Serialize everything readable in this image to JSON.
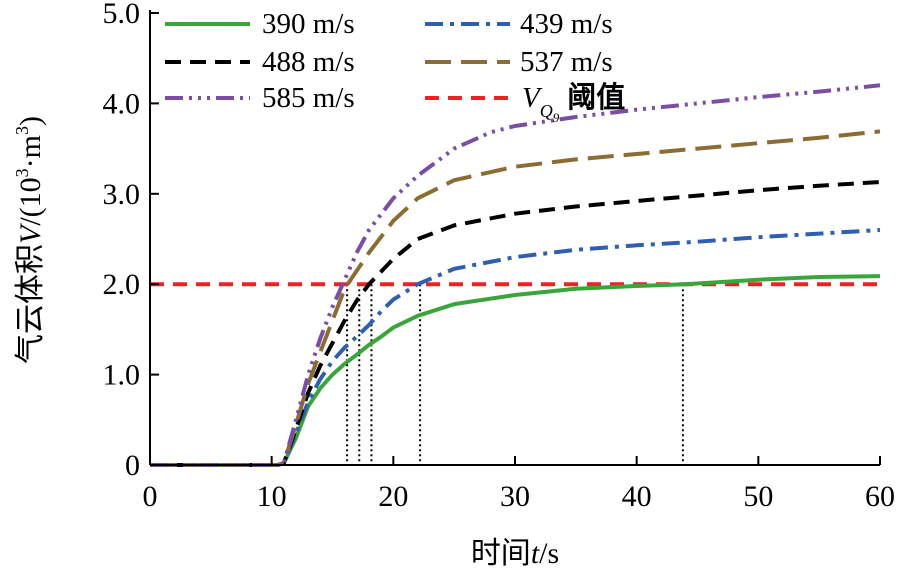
{
  "chart_data": {
    "type": "line",
    "xlabel_main": "时间",
    "xlabel_var": "t",
    "xlabel_unit": "/s",
    "ylabel_main": "气云体积",
    "ylabel_var": "V",
    "ylabel_unit_pre": "/(10",
    "ylabel_unit_exp": "3",
    "ylabel_unit_mid": "·m",
    "ylabel_unit_exp2": "3",
    "ylabel_unit_post": ")",
    "xlim": [
      0,
      60
    ],
    "ylim": [
      0,
      5
    ],
    "x_ticks": [
      0,
      10,
      20,
      30,
      40,
      50,
      60
    ],
    "x_tick_labels": [
      "0",
      "10",
      "20",
      "30",
      "40",
      "50",
      "60"
    ],
    "y_ticks": [
      0,
      1,
      2,
      3,
      4,
      5
    ],
    "y_tick_labels": [
      "0",
      "1.0",
      "2.0",
      "3.0",
      "4.0",
      "5.0"
    ],
    "series": [
      {
        "name": "390 m/s",
        "color": "#3aa63a",
        "dash": "",
        "x": [
          0,
          10.5,
          11,
          12,
          13,
          14,
          15,
          16,
          17,
          18,
          19,
          20,
          22,
          25,
          30,
          35,
          40,
          44,
          50,
          55,
          60
        ],
        "y": [
          0,
          0,
          0.02,
          0.3,
          0.65,
          0.85,
          1.0,
          1.12,
          1.22,
          1.33,
          1.42,
          1.52,
          1.65,
          1.78,
          1.88,
          1.95,
          1.98,
          2.0,
          2.05,
          2.08,
          2.09
        ]
      },
      {
        "name": "439 m/s",
        "color": "#2f5fb3",
        "dash": "18 7 4 7",
        "x": [
          0,
          10.5,
          11,
          12,
          13,
          14,
          15,
          16,
          17,
          18,
          19,
          20,
          22,
          25,
          30,
          35,
          40,
          45,
          50,
          55,
          60
        ],
        "y": [
          0,
          0,
          0.02,
          0.35,
          0.7,
          0.95,
          1.15,
          1.3,
          1.42,
          1.55,
          1.7,
          1.83,
          2.0,
          2.17,
          2.3,
          2.38,
          2.43,
          2.47,
          2.52,
          2.56,
          2.6
        ]
      },
      {
        "name": "488 m/s",
        "color": "#000000",
        "dash": "16 9",
        "x": [
          0,
          10.5,
          11,
          12,
          13,
          14,
          15,
          16,
          17,
          18,
          20,
          22,
          25,
          30,
          35,
          40,
          45,
          50,
          55,
          60
        ],
        "y": [
          0,
          0,
          0.02,
          0.4,
          0.8,
          1.1,
          1.35,
          1.6,
          1.82,
          2.0,
          2.28,
          2.5,
          2.65,
          2.78,
          2.86,
          2.92,
          2.98,
          3.04,
          3.09,
          3.13
        ]
      },
      {
        "name": "537 m/s",
        "color": "#8b6d33",
        "dash": "26 10",
        "x": [
          0,
          10.5,
          11,
          12,
          13,
          14,
          15,
          16,
          17,
          18,
          20,
          22,
          25,
          30,
          35,
          40,
          45,
          50,
          55,
          60
        ],
        "y": [
          0,
          0,
          0.02,
          0.45,
          0.9,
          1.25,
          1.6,
          1.95,
          2.15,
          2.35,
          2.7,
          2.95,
          3.15,
          3.3,
          3.38,
          3.44,
          3.5,
          3.56,
          3.62,
          3.69
        ]
      },
      {
        "name": "585 m/s",
        "color": "#7a4ea5",
        "dash": "18 6 3 6 3 6 3 6",
        "x": [
          0,
          10.5,
          11,
          12,
          13,
          14,
          15,
          16,
          17,
          18,
          20,
          22,
          25,
          28,
          30,
          35,
          40,
          45,
          50,
          55,
          60
        ],
        "y": [
          0,
          0,
          0.02,
          0.5,
          1.0,
          1.4,
          1.75,
          2.05,
          2.35,
          2.6,
          2.95,
          3.2,
          3.5,
          3.68,
          3.75,
          3.85,
          3.93,
          4.0,
          4.07,
          4.13,
          4.2
        ]
      },
      {
        "name_var": "V",
        "name_sub": "Q",
        "name_subsub": "9",
        "name_text": "阈值",
        "color": "#ee2222",
        "dash": "14 9",
        "x": [
          0,
          60
        ],
        "y": [
          2.0,
          2.0
        ]
      }
    ],
    "crossing_times": [
      16.2,
      17.2,
      18.2,
      22.2,
      43.8
    ]
  }
}
